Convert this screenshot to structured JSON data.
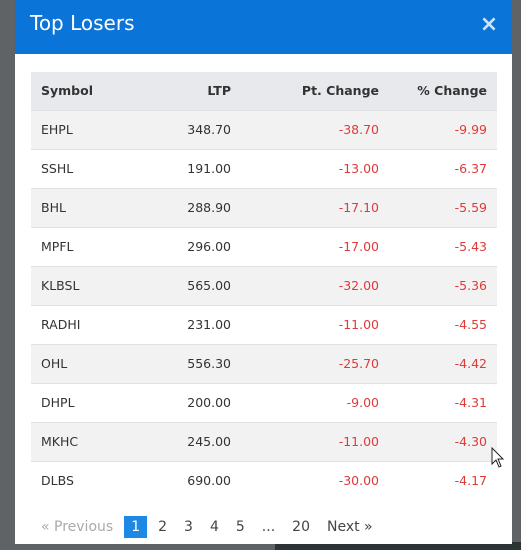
{
  "modal": {
    "title": "Top Losers",
    "close_glyph": "×"
  },
  "table": {
    "headers": {
      "symbol": "Symbol",
      "ltp": "LTP",
      "pt_change": "Pt. Change",
      "pct_change": "% Change"
    },
    "rows": [
      {
        "symbol": "EHPL",
        "ltp": "348.70",
        "pt_change": "-38.70",
        "pct_change": "-9.99"
      },
      {
        "symbol": "SSHL",
        "ltp": "191.00",
        "pt_change": "-13.00",
        "pct_change": "-6.37"
      },
      {
        "symbol": "BHL",
        "ltp": "288.90",
        "pt_change": "-17.10",
        "pct_change": "-5.59"
      },
      {
        "symbol": "MPFL",
        "ltp": "296.00",
        "pt_change": "-17.00",
        "pct_change": "-5.43"
      },
      {
        "symbol": "KLBSL",
        "ltp": "565.00",
        "pt_change": "-32.00",
        "pct_change": "-5.36"
      },
      {
        "symbol": "RADHI",
        "ltp": "231.00",
        "pt_change": "-11.00",
        "pct_change": "-4.55"
      },
      {
        "symbol": "OHL",
        "ltp": "556.30",
        "pt_change": "-25.70",
        "pct_change": "-4.42"
      },
      {
        "symbol": "DHPL",
        "ltp": "200.00",
        "pt_change": "-9.00",
        "pct_change": "-4.31"
      },
      {
        "symbol": "MKHC",
        "ltp": "245.00",
        "pt_change": "-11.00",
        "pct_change": "-4.30"
      },
      {
        "symbol": "DLBS",
        "ltp": "690.00",
        "pt_change": "-30.00",
        "pct_change": "-4.17"
      }
    ]
  },
  "pagination": {
    "previous": "« Previous",
    "pages": [
      "1",
      "2",
      "3",
      "4",
      "5",
      "...",
      "20"
    ],
    "active_page": "1",
    "next": "Next »"
  },
  "colors": {
    "header_bg": "#0a74d8",
    "negative": "#e03a3a",
    "active_page": "#1e88e5"
  }
}
